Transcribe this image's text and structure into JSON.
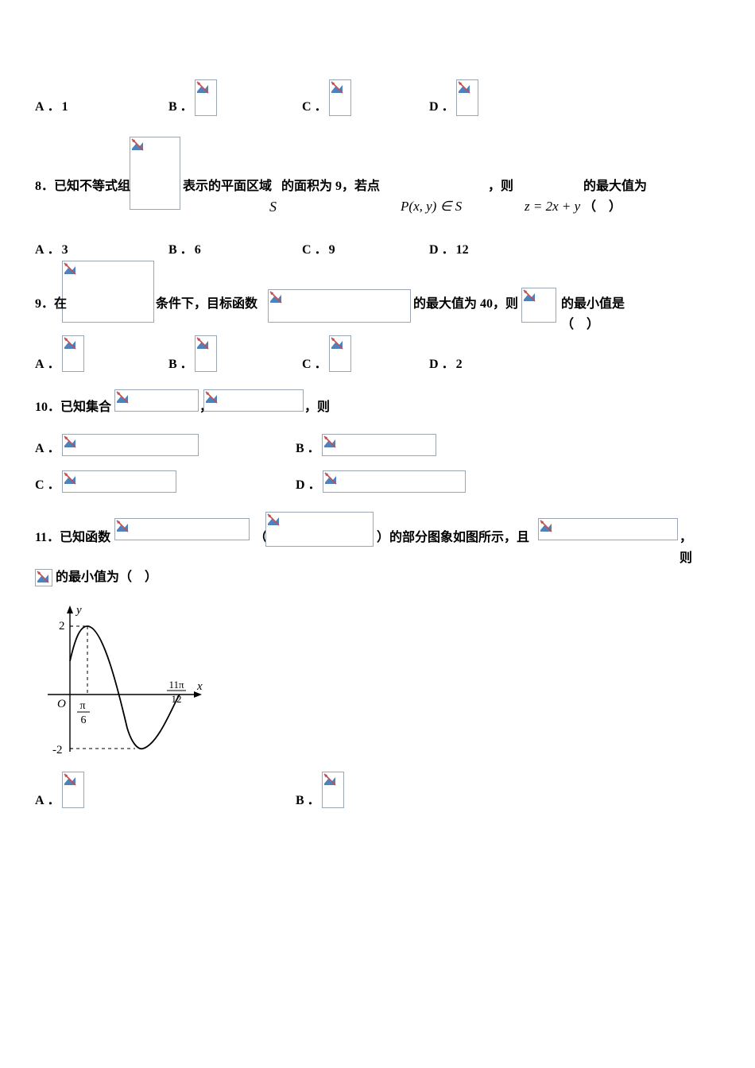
{
  "broken_icon": {
    "stroke1": "#c0504d",
    "stroke2": "#4f81bd",
    "bg": "#ffffff"
  },
  "q7_opts": {
    "A": "1",
    "B": "",
    "C": "",
    "D": ""
  },
  "q8": {
    "num": "8",
    "text1": "．已知不等式组",
    "text2": "表示的平面区域",
    "text3": "的面积为 9，若点",
    "text4": "，则",
    "text5": "的最大值为（　）",
    "S": "S",
    "Pxy": "P(x, y) ∈ S",
    "z": "z = 2x + y",
    "opts": {
      "A": "3",
      "B": "6",
      "C": "9",
      "D": "12"
    }
  },
  "q9": {
    "num": "9",
    "text1": "．在",
    "text2": "条件下，目标函数",
    "text3": "的最大值为 40，则",
    "text4": "的最小值是（　）",
    "opts": {
      "A": "",
      "B": "",
      "C": "",
      "D": "2"
    }
  },
  "q10": {
    "num": "10",
    "text1": "．已知集合",
    "comma": "，",
    "text2": "，则",
    "opts": {
      "A": "",
      "B": "",
      "C": "",
      "D": ""
    }
  },
  "q11": {
    "num": "11",
    "text1": "．已知函数",
    "lparen": "（",
    "rparen": "）的部分图象如图所示，且",
    "tail": "，则",
    "text2": "的最小值为（　）",
    "opts": {
      "A": "",
      "B": ""
    }
  },
  "graph": {
    "yTop": "2",
    "yBot": "-2",
    "x1_num": "π",
    "x1_den": "6",
    "x2_num": "11π",
    "x2_den": "12",
    "origin": "O",
    "xLabel": "x",
    "yLabel": "y",
    "axis_color": "#000000",
    "curve_color": "#000000",
    "dash_color": "#000000"
  }
}
